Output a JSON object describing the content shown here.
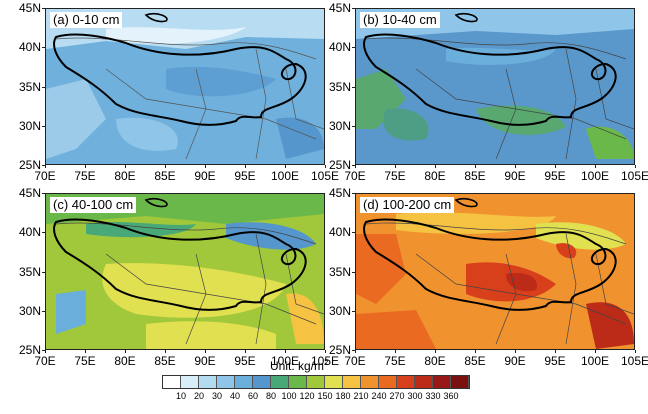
{
  "figure": {
    "unit_text": "Unit: kg/m",
    "unit_sup": "2",
    "lat_labels": [
      "45N",
      "40N",
      "35N",
      "30N",
      "25N"
    ],
    "lon_labels": [
      "70E",
      "75E",
      "80E",
      "85E",
      "90E",
      "95E",
      "100E",
      "105E"
    ]
  },
  "panels": [
    {
      "label": "(a) 0-10 cm"
    },
    {
      "label": "(b) 10-40 cm"
    },
    {
      "label": "(c) 40-100 cm"
    },
    {
      "label": "(d) 100-200 cm"
    }
  ],
  "colorbar": {
    "labels": [
      "10",
      "20",
      "30",
      "40",
      "60",
      "80",
      "100",
      "120",
      "150",
      "180",
      "210",
      "240",
      "270",
      "300",
      "330",
      "360"
    ],
    "colors": [
      "#ffffff",
      "#d8eef8",
      "#b4dcf0",
      "#8ec5e8",
      "#6aaedb",
      "#5596cc",
      "#48a878",
      "#6ab84a",
      "#a0c83a",
      "#e0e050",
      "#f5c242",
      "#f0922e",
      "#ea6a22",
      "#d8401c",
      "#bc2a18",
      "#981818",
      "#7a1010"
    ]
  }
}
